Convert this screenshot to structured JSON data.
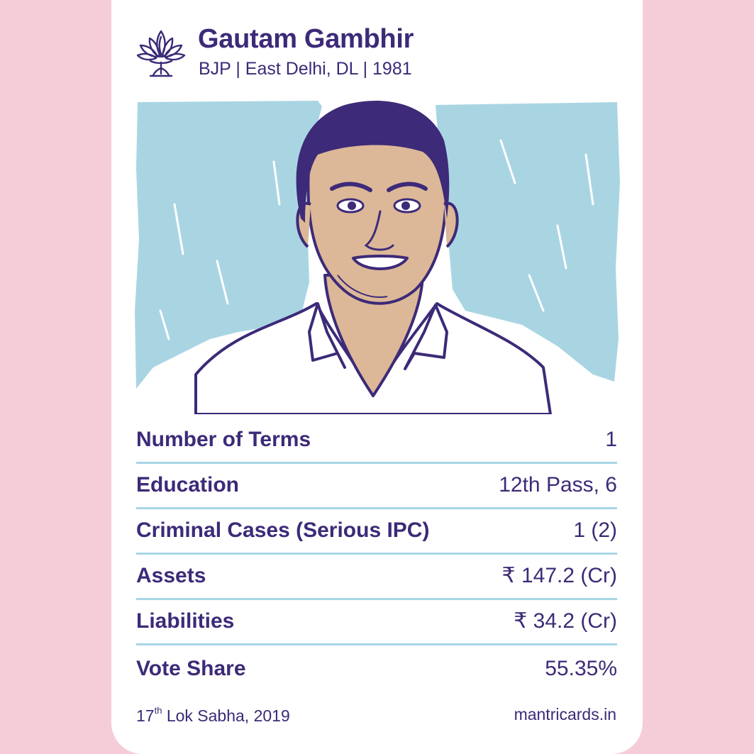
{
  "card": {
    "name": "Gautam Gambhir",
    "party": "BJP",
    "constituency": "East Delhi, DL",
    "birth_year": "1981",
    "subtitle": "BJP | East Delhi, DL | 1981",
    "party_symbol_icon": "lotus-icon"
  },
  "stats": [
    {
      "label": "Number of Terms",
      "value": "1"
    },
    {
      "label": "Education",
      "value": "12th Pass, 6"
    },
    {
      "label": "Criminal Cases (Serious IPC)",
      "value": "1 (2)"
    },
    {
      "label": "Assets",
      "value": "₹ 147.2 (Cr)"
    },
    {
      "label": "Liabilities",
      "value": "₹ 34.2 (Cr)"
    },
    {
      "label": "Vote Share",
      "value": "55.35%"
    }
  ],
  "footer": {
    "session_number": "17",
    "session_suffix": "th",
    "session_text": "Lok Sabha, 2019",
    "website": "mantricards.in"
  },
  "colors": {
    "background": "#f5cdd8",
    "text": "#3d2a78",
    "divider": "#a7d6e6",
    "sky": "#a9d5e3",
    "skin": "#dcb898",
    "hair": "#3d2a78"
  }
}
